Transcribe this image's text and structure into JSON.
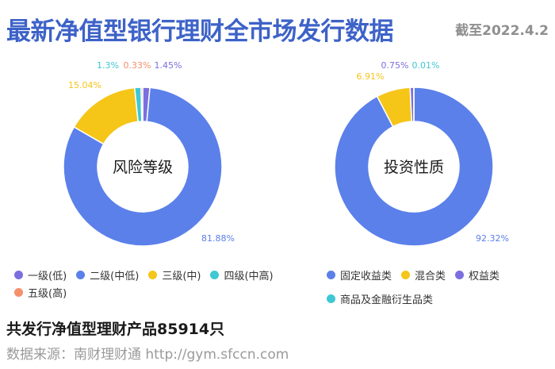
{
  "header": {
    "title": "最新净值型银行理财全市场发行数据",
    "date": "截至2022.4.2"
  },
  "chart_data": [
    {
      "type": "pie",
      "title": "风险等级",
      "categories": [
        "一级(低)",
        "二级(中低)",
        "三级(中)",
        "四级(中高)",
        "五级(高)"
      ],
      "values": [
        1.45,
        81.88,
        15.04,
        1.3,
        0.33
      ],
      "labels": [
        "1.45%",
        "81.88%",
        "15.04%",
        "1.3%",
        "0.33%"
      ],
      "colors": [
        "#7b6fe0",
        "#5b80ea",
        "#f5c518",
        "#3ec8d3",
        "#f4906b"
      ]
    },
    {
      "type": "pie",
      "title": "投资性质",
      "categories": [
        "固定收益类",
        "混合类",
        "权益类",
        "商品及金融衍生品类"
      ],
      "values": [
        92.32,
        6.91,
        0.75,
        0.01
      ],
      "labels": [
        "92.32%",
        "6.91%",
        "0.75%",
        "0.01%"
      ],
      "colors": [
        "#5b80ea",
        "#f5c518",
        "#7b6fe0",
        "#3ec8d3"
      ]
    }
  ],
  "summary": "共发行净值型理财产品85914只",
  "source": "数据来源：南财理财通 http://gym.sfccn.com"
}
